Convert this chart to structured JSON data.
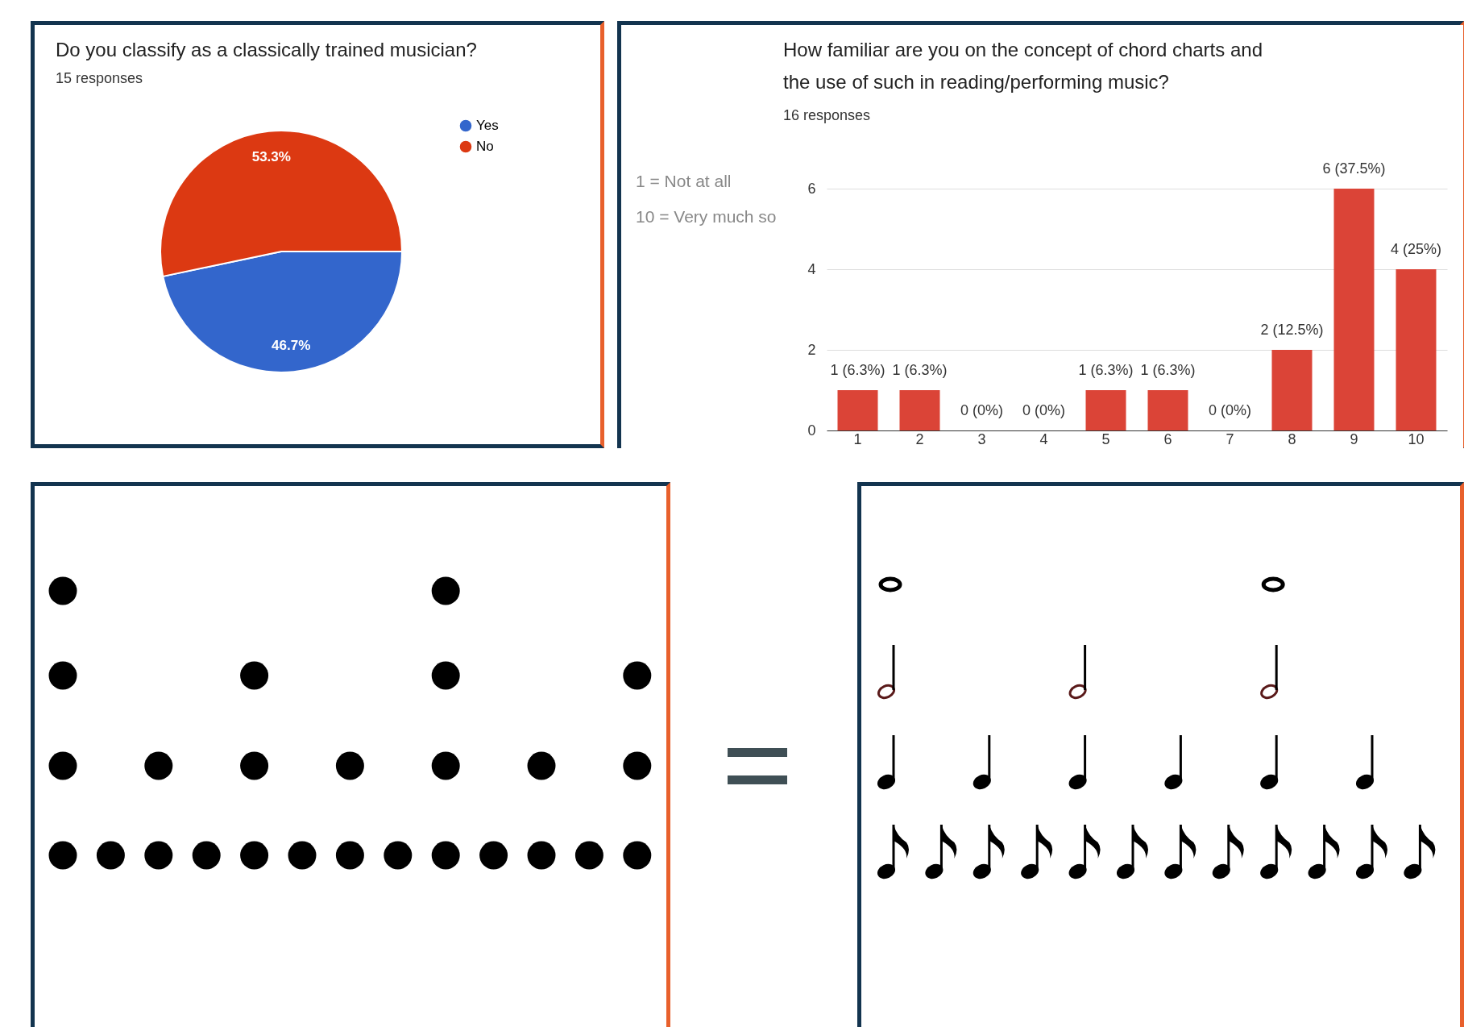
{
  "chart_data": [
    {
      "type": "pie",
      "title": "Do you classify as a classically trained musician?",
      "subtitle": "15 responses",
      "categories": [
        "Yes",
        "No"
      ],
      "values": [
        46.7,
        53.3
      ],
      "colors": [
        "#3366cc",
        "#dc3912"
      ],
      "value_labels": [
        "46.7%",
        "53.3%"
      ],
      "legend": "right"
    },
    {
      "type": "bar",
      "title": [
        "How familiar are you on the concept of chord charts and",
        "the use of such in reading/performing music?"
      ],
      "subtitle": "16 responses",
      "categories": [
        "1",
        "2",
        "3",
        "4",
        "5",
        "6",
        "7",
        "8",
        "9",
        "10"
      ],
      "series": [
        {
          "color": "#db4437",
          "values": [
            1,
            1,
            0,
            0,
            1,
            1,
            0,
            2,
            6,
            4
          ]
        }
      ],
      "value_labels": [
        "1 (6.3%)",
        "1 (6.3%)",
        "0 (0%)",
        "0 (0%)",
        "1 (6.3%)",
        "1 (6.3%)",
        "0 (0%)",
        "2 (12.5%)",
        "6 (37.5%)",
        "4 (25%)"
      ],
      "ylim": [
        0,
        6
      ],
      "yticks": [
        0,
        2,
        4,
        6
      ],
      "grid": "y",
      "annotations": [
        "1 = Not at all",
        "10 = Very much so"
      ]
    }
  ]
}
